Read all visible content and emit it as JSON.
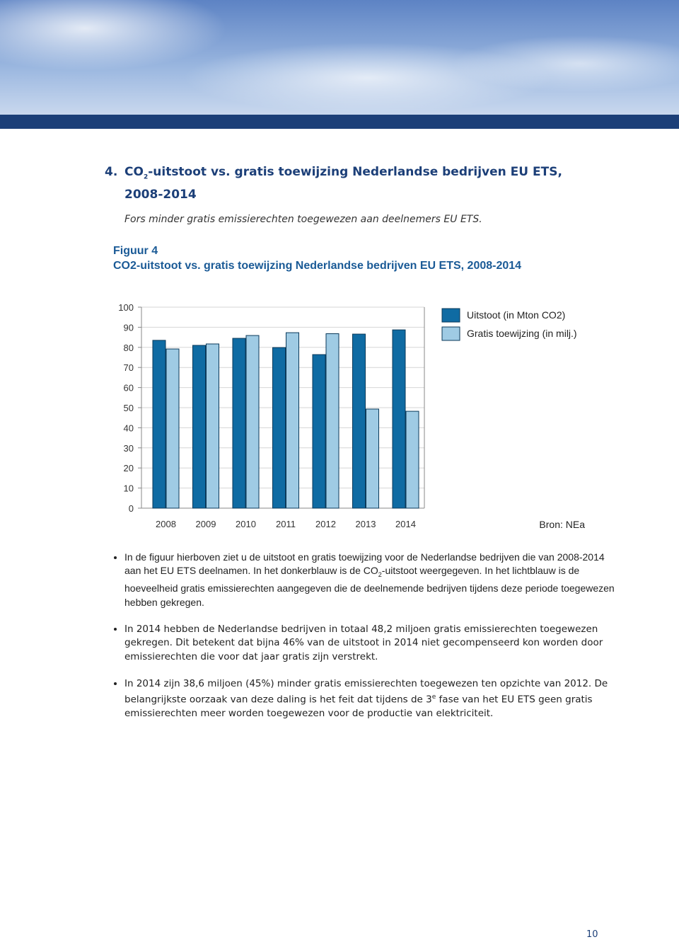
{
  "header": {
    "heading_parts": [
      "4.",
      "CO",
      "2",
      "-uitstoot vs. gratis toewijzing Nederlandse bedrijven EU ETS,",
      "2008-2014"
    ],
    "subtitle": "Fors minder gratis emissierechten toegewezen aan deelnemers EU ETS."
  },
  "chart_data": {
    "type": "bar",
    "title": "Figuur 4",
    "subtitle": "CO2-uitstoot vs. gratis toewijzing Nederlandse bedrijven EU ETS, 2008-2014",
    "categories": [
      "2008",
      "2009",
      "2010",
      "2011",
      "2012",
      "2013",
      "2014"
    ],
    "series": [
      {
        "name": "Uitstoot (in Mton CO2)",
        "color": "#0f6ba3",
        "values": [
          83.5,
          81,
          84.5,
          79.9,
          76.4,
          86.6,
          88.7
        ]
      },
      {
        "name": "Gratis toewijzing (in milj.)",
        "color": "#9fcbe4",
        "values": [
          79.2,
          81.7,
          85.9,
          87.3,
          86.8,
          49.3,
          48.2
        ]
      }
    ],
    "ylim": [
      0,
      100
    ],
    "yticks": [
      0,
      10,
      20,
      30,
      40,
      50,
      60,
      70,
      80,
      90,
      100
    ],
    "grid": true,
    "source": "Bron: NEa"
  },
  "bullets": [
    [
      "In de figuur hierboven ziet u de uitstoot en gratis toewijzing voor de Nederlandse bedrijven die van 2008-2014 aan het EU ETS deelnamen. In het donkerblauw is de CO",
      "2",
      "-uitstoot weergegeven. In het lichtblauw is de hoeveelheid gratis emissierechten aangegeven die de deelnemende bedrijven tijdens deze periode toegewezen hebben gekregen."
    ],
    [
      "In 2014 hebben de Nederlandse bedrijven in totaal 48,2 miljoen gratis emissierechten toegewezen gekregen. Dit betekent dat bijna 46% van de uitstoot in 2014 niet gecompenseerd kon worden door emissierechten die voor dat jaar gratis zijn verstrekt."
    ],
    [
      "In 2014 zijn 38,6 miljoen (45%) minder gratis emissierechten toegewezen ten opzichte van 2012. De belangrijkste oorzaak van deze daling is het feit dat tijdens de 3",
      "e",
      " fase van het EU ETS geen gratis emissierechten meer worden toegewezen voor de productie van elektriciteit."
    ]
  ],
  "page_number": "10"
}
